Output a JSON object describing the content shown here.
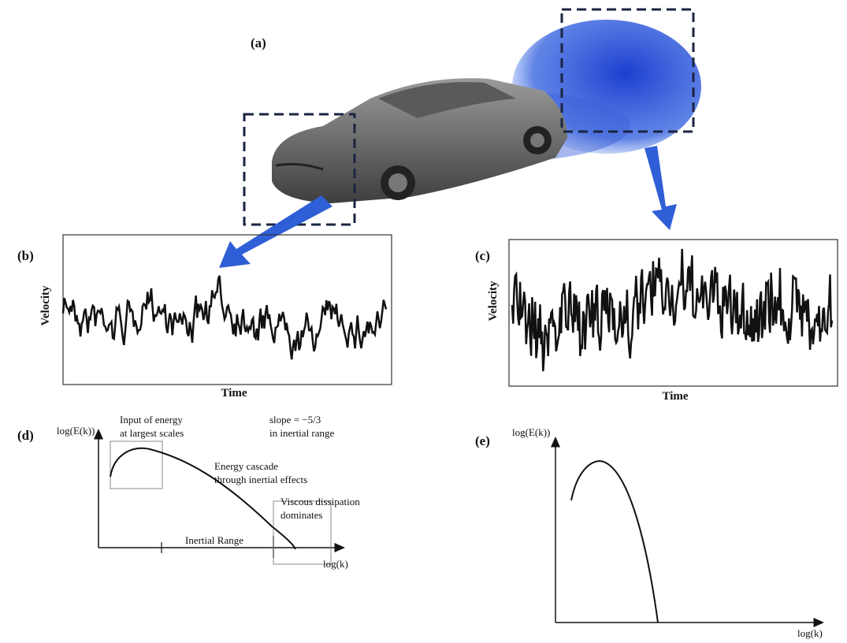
{
  "panels": {
    "a": {
      "label": "(a)"
    },
    "b": {
      "label": "(b)",
      "y_label": "Velocity",
      "x_label": "Time"
    },
    "c": {
      "label": "(c)",
      "y_label": "Velocity",
      "x_label": "Time"
    },
    "d": {
      "label": "(d)",
      "y_label": "log(E(k))",
      "x_label": "log(k)",
      "annotations": {
        "input": [
          "Input of energy",
          "at largest scales"
        ],
        "slope": [
          "slope = −5/3",
          "in inertial range"
        ],
        "cascade": [
          "Energy cascade",
          "through inertial effects"
        ],
        "dissipation": [
          "Viscous dissipation",
          "dominates"
        ],
        "range": "Inertial Range"
      }
    },
    "e": {
      "label": "(e)",
      "y_label": "log(E(k))",
      "x_label": "log(k)"
    }
  }
}
